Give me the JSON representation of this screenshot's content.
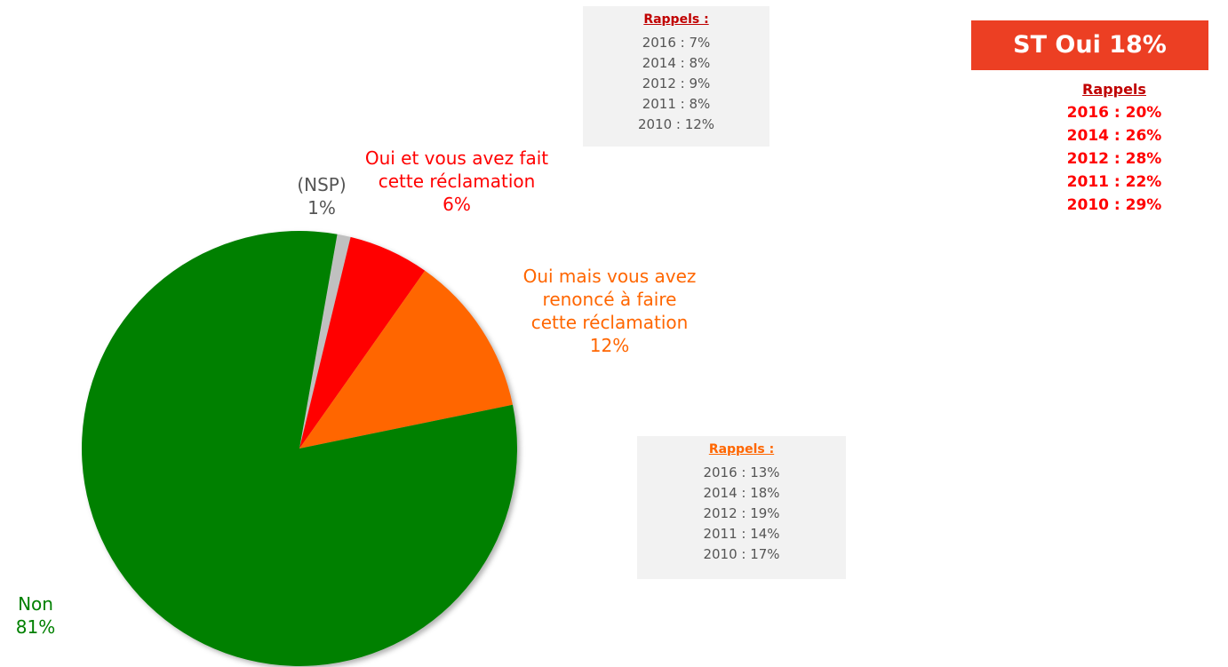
{
  "chart_data": {
    "type": "pie",
    "categories": [
      "(NSP)",
      "Oui et vous avez fait cette réclamation",
      "Oui mais vous avez renoncé à faire cette réclamation",
      "Non"
    ],
    "values": [
      1,
      6,
      12,
      81
    ],
    "value_labels": [
      "1%",
      "6%",
      "12%",
      "81%"
    ],
    "colors": [
      "#c0c0c0",
      "#ff0000",
      "#ff6600",
      "#008000"
    ],
    "label_colors": [
      "#555555",
      "#ff0000",
      "#ff6600",
      "#008000"
    ]
  },
  "rappels_boxes": [
    {
      "title": "Rappels :",
      "items": [
        "2016 : 7%",
        "2014 : 8%",
        "2012 : 9%",
        "2011 : 8%",
        "2010 : 12%"
      ]
    },
    {
      "title": "Rappels :",
      "items": [
        "2016 : 13%",
        "2014 : 18%",
        "2012 : 19%",
        "2011 : 14%",
        "2010 : 17%"
      ]
    }
  ],
  "st_box": {
    "label": "ST Oui 18%",
    "rappels_title": "Rappels",
    "items": [
      "2016 : 20%",
      "2014 : 26%",
      "2012 : 28%",
      "2011 : 22%",
      "2010 : 29%"
    ]
  }
}
